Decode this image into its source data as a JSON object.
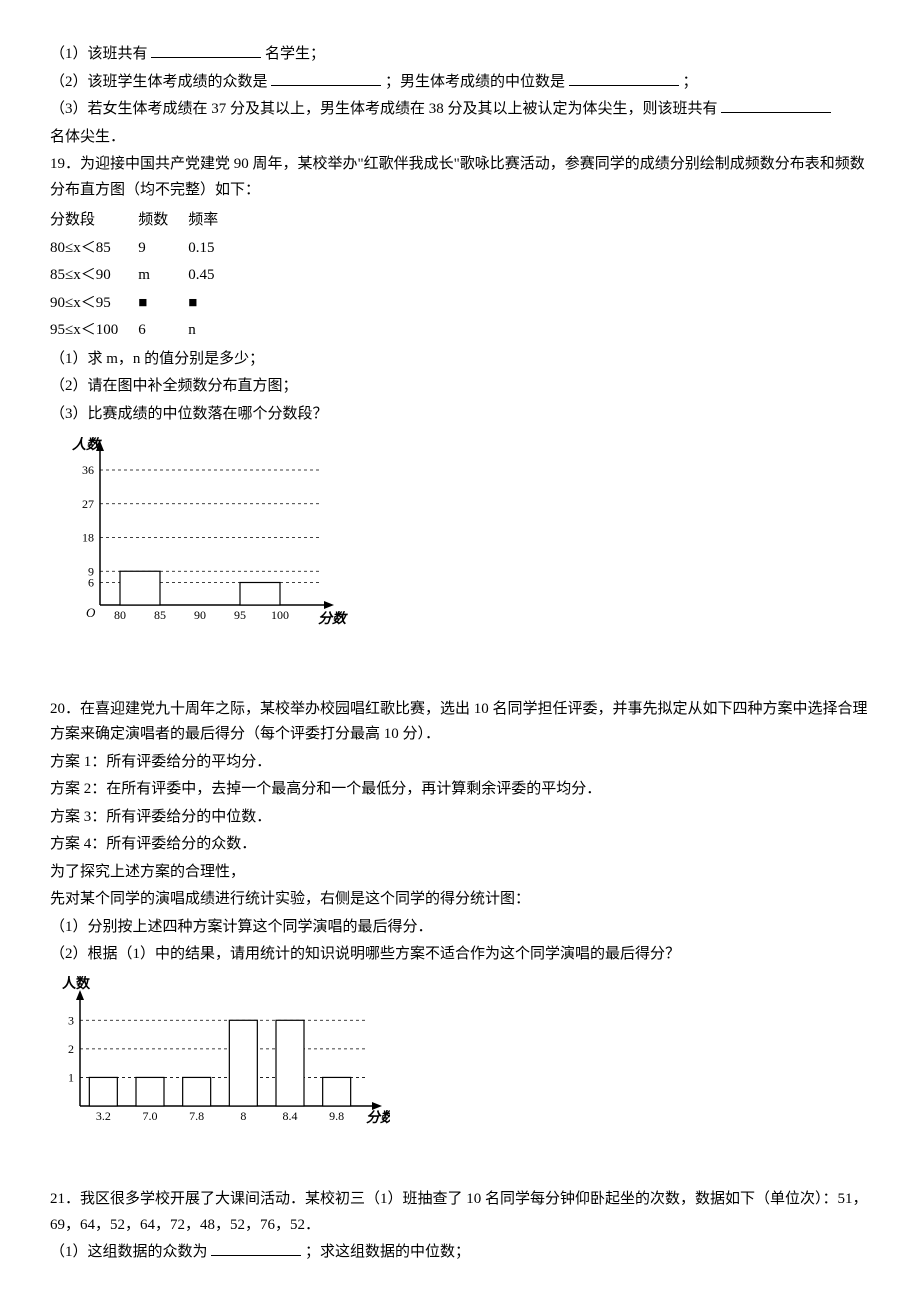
{
  "q18": {
    "p1_a": "（1）该班共有",
    "p1_b": "名学生；",
    "p2_a": "（2）该班学生体考成绩的众数是",
    "p2_b": "；男生体考成绩的中位数是",
    "p2_c": "；",
    "p3_a": "（3）若女生体考成绩在 37 分及其以上，男生体考成绩在 38 分及其以上被认定为体尖生，则该班共有",
    "p3_b": "名体尖生．"
  },
  "q19": {
    "intro": "19．为迎接中国共产党建党 90 周年，某校举办\"红歌伴我成长\"歌咏比赛活动，参赛同学的成绩分别绘制成频数分布表和频数分布直方图（均不完整）如下：",
    "table": {
      "headers": [
        "分数段",
        "频数",
        "频率"
      ],
      "rows": [
        [
          "80≤x＜85",
          "9",
          "0.15"
        ],
        [
          "85≤x＜90",
          "m",
          "0.45"
        ],
        [
          "90≤x＜95",
          "■",
          "■"
        ],
        [
          "95≤x＜100",
          "6",
          "n"
        ]
      ]
    },
    "p1": "（1）求 m，n 的值分别是多少；",
    "p2": "（2）请在图中补全频数分布直方图；",
    "p3": "（3）比赛成绩的中位数落在哪个分数段？",
    "chart": {
      "ylabel": "人数",
      "xlabel": "分数",
      "yticks": [
        6,
        9,
        18,
        27,
        36
      ],
      "xticks": [
        80,
        85,
        90,
        95,
        100
      ],
      "bars": [
        {
          "x": 80,
          "h": 9
        },
        {
          "x": 95,
          "h": 6
        }
      ],
      "bar_fill": "#ffffff",
      "bar_stroke": "#000000",
      "grid_dash": "3,3",
      "axis_color": "#000000"
    }
  },
  "q20": {
    "intro": "20．在喜迎建党九十周年之际，某校举办校园唱红歌比赛，选出 10 名同学担任评委，并事先拟定从如下四种方案中选择合理方案来确定演唱者的最后得分（每个评委打分最高 10 分）．",
    "s1": "方案 1：所有评委给分的平均分．",
    "s2": "方案 2：在所有评委中，去掉一个最高分和一个最低分，再计算剩余评委的平均分．",
    "s3": "方案 3：所有评委给分的中位数．",
    "s4": "方案 4：所有评委给分的众数．",
    "s5": "为了探究上述方案的合理性，",
    "s6": "先对某个同学的演唱成绩进行统计实验，右侧是这个同学的得分统计图：",
    "p1": "（1）分别按上述四种方案计算这个同学演唱的最后得分．",
    "p2": "（2）根据（1）中的结果，请用统计的知识说明哪些方案不适合作为这个同学演唱的最后得分？",
    "chart": {
      "ylabel": "人数",
      "xlabel": "分数",
      "yticks": [
        1,
        2,
        3
      ],
      "bars": [
        {
          "label": "3.2",
          "h": 1
        },
        {
          "label": "7.0",
          "h": 1
        },
        {
          "label": "7.8",
          "h": 1
        },
        {
          "label": "8",
          "h": 3
        },
        {
          "label": "8.4",
          "h": 3
        },
        {
          "label": "9.8",
          "h": 1
        }
      ],
      "bar_fill": "#ffffff",
      "bar_stroke": "#000000",
      "grid_dash": "3,3",
      "axis_color": "#000000"
    }
  },
  "q21": {
    "intro": "21．我区很多学校开展了大课间活动．某校初三（1）班抽查了 10 名同学每分钟仰卧起坐的次数，数据如下（单位次）：51，69，64，52，64，72，48，52，76，52．",
    "p1_a": "（1）这组数据的众数为 ",
    "p1_b": "；求这组数据的中位数；"
  }
}
